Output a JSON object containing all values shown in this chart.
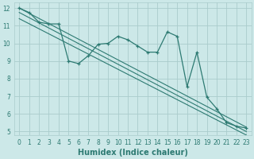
{
  "xlabel": "Humidex (Indice chaleur)",
  "ylabel": "",
  "bg_color": "#cce8e8",
  "grid_color": "#aacccc",
  "line_color": "#2d7a72",
  "xlim": [
    -0.5,
    23.5
  ],
  "ylim": [
    4.8,
    12.3
  ],
  "xticks": [
    0,
    1,
    2,
    3,
    4,
    5,
    6,
    7,
    8,
    9,
    10,
    11,
    12,
    13,
    14,
    15,
    16,
    17,
    18,
    19,
    20,
    21,
    22,
    23
  ],
  "yticks": [
    5,
    6,
    7,
    8,
    9,
    10,
    11,
    12
  ],
  "series1_y": [
    12.0,
    11.75,
    11.2,
    11.1,
    11.1,
    9.0,
    8.85,
    9.3,
    9.95,
    10.0,
    10.4,
    10.2,
    9.85,
    9.5,
    9.5,
    10.65,
    10.4,
    7.55,
    9.5,
    6.95,
    6.3,
    5.5,
    5.3,
    5.2
  ],
  "line2_start_y": 12.0,
  "line2_end_y": 5.25,
  "line3_start_y": 11.75,
  "line3_end_y": 5.0,
  "line4_start_y": 11.4,
  "line4_end_y": 4.8,
  "xlabel_fontsize": 7,
  "tick_fontsize": 5.5
}
